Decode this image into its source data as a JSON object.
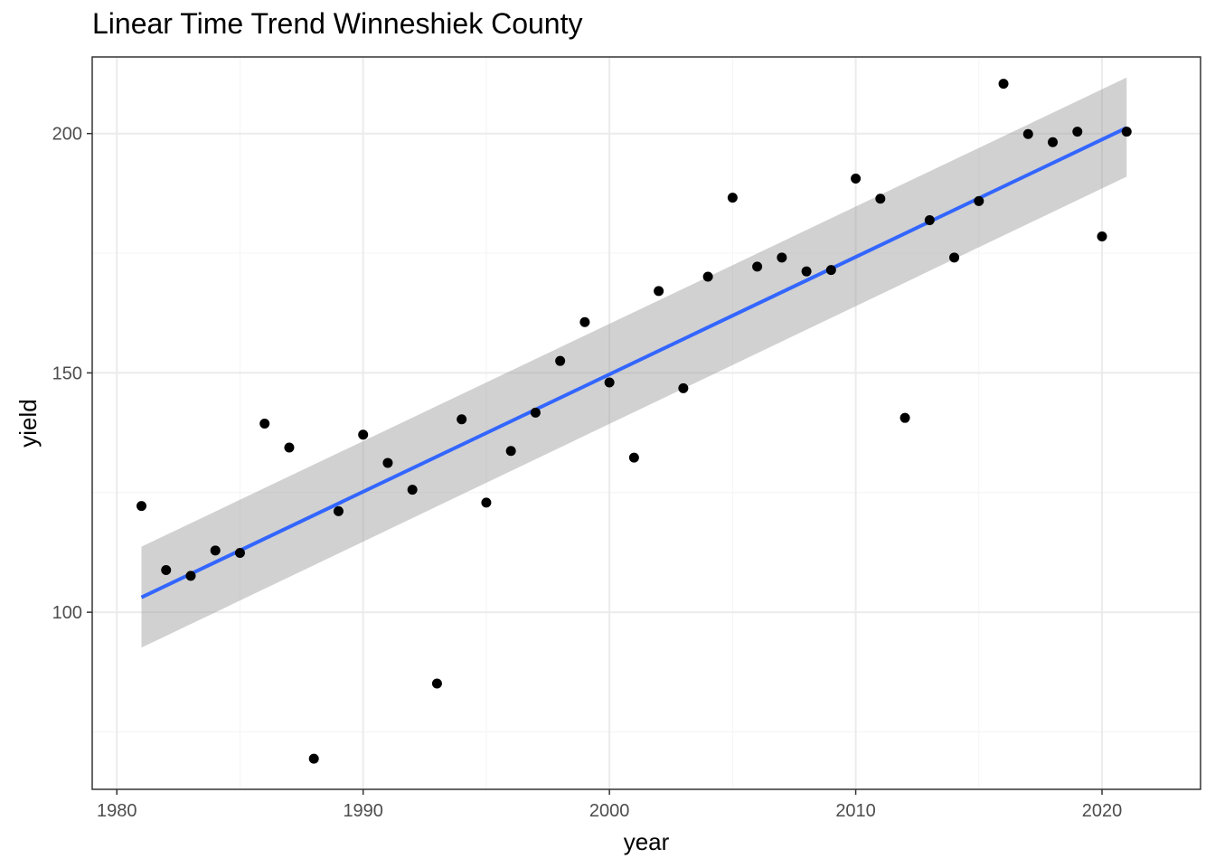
{
  "chart_data": {
    "type": "scatter",
    "title": "Linear Time Trend Winneshiek County",
    "xlabel": "year",
    "ylabel": "yield",
    "xlim": [
      1979,
      2024
    ],
    "ylim": [
      63,
      216
    ],
    "x_ticks": [
      1980,
      1990,
      2000,
      2010,
      2020
    ],
    "y_ticks": [
      100,
      150,
      200
    ],
    "grid": true,
    "theme": "bw",
    "series": [
      {
        "x": [
          1981,
          1982,
          1983,
          1984,
          1985,
          1986,
          1987,
          1988,
          1989,
          1990,
          1991,
          1992,
          1993,
          1994,
          1995,
          1996,
          1997,
          1998,
          1999,
          2000,
          2001,
          2002,
          2003,
          2004,
          2005,
          2006,
          2007,
          2008,
          2009,
          2010,
          2011,
          2012,
          2013,
          2014,
          2015,
          2016,
          2017,
          2018,
          2019,
          2020,
          2021
        ],
        "y": [
          122.2,
          108.8,
          107.6,
          112.9,
          112.4,
          139.4,
          134.4,
          69.4,
          121.1,
          137.1,
          131.2,
          125.6,
          85.1,
          140.3,
          122.9,
          133.7,
          141.7,
          152.5,
          160.6,
          148.0,
          132.3,
          167.1,
          146.8,
          170.1,
          186.6,
          172.2,
          174.1,
          171.2,
          171.5,
          190.6,
          186.4,
          140.6,
          181.9,
          174.1,
          185.9,
          210.4,
          199.9,
          198.2,
          200.4,
          178.5,
          200.4
        ]
      }
    ],
    "trend": {
      "method": "linear",
      "x": [
        1981,
        2021
      ],
      "y": [
        103.1,
        201.2
      ],
      "ci_lower": [
        92.6,
        191.0
      ],
      "ci_upper": [
        113.7,
        211.7
      ]
    },
    "colors": {
      "points": "#000000",
      "trend_line": "#3366ff",
      "ci_band": "#999999",
      "grid_major": "#ebebeb",
      "grid_minor": "#f4f4f4",
      "panel_border": "#333333"
    }
  }
}
